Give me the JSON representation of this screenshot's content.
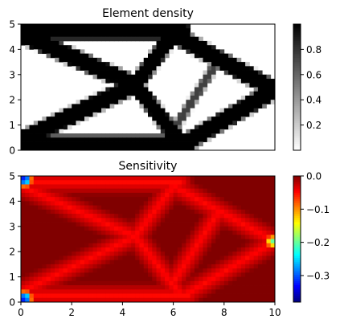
{
  "chart_data": [
    {
      "type": "heatmap",
      "title": "Element density",
      "xlabel": "",
      "ylabel": "",
      "xlim": [
        0,
        10
      ],
      "ylim": [
        0,
        5
      ],
      "xticks": [],
      "xtick_labels": [],
      "yticks": [
        0,
        1,
        2,
        3,
        4,
        5
      ],
      "ytick_labels": [
        "0",
        "1",
        "2",
        "3",
        "4",
        "5"
      ],
      "colormap": "gray_r",
      "colorbar": {
        "range": [
          0.0,
          1.0
        ],
        "ticks": [
          0.2,
          0.4,
          0.6,
          0.8
        ],
        "tick_labels": [
          "0.2",
          "0.4",
          "0.6",
          "0.8"
        ]
      },
      "structure": {
        "members": [
          [
            0,
            4.75,
            6.3,
            4.75
          ],
          [
            0,
            0.25,
            6.6,
            0.25
          ],
          [
            0,
            4.6,
            4.5,
            2.6
          ],
          [
            0,
            0.4,
            4.5,
            2.6
          ],
          [
            4.5,
            2.6,
            6.0,
            4.6
          ],
          [
            4.5,
            2.6,
            6.2,
            0.4
          ],
          [
            6.0,
            4.6,
            10.0,
            2.4
          ],
          [
            6.5,
            0.3,
            10.0,
            2.4
          ],
          [
            6.0,
            0.8,
            7.8,
            3.6
          ]
        ],
        "density": [
          1.0,
          1.0,
          1.0,
          1.0,
          1.0,
          1.0,
          1.0,
          1.0,
          0.75
        ],
        "half_width": [
          0.32,
          0.3,
          0.3,
          0.3,
          0.26,
          0.26,
          0.3,
          0.3,
          0.12
        ]
      }
    },
    {
      "type": "heatmap",
      "title": "Sensitivity",
      "xlabel": "",
      "ylabel": "",
      "xlim": [
        0,
        10
      ],
      "ylim": [
        0,
        5
      ],
      "xticks": [
        0,
        2,
        4,
        6,
        8,
        10
      ],
      "xtick_labels": [
        "0",
        "2",
        "4",
        "6",
        "8",
        "10"
      ],
      "yticks": [
        0,
        1,
        2,
        3,
        4,
        5
      ],
      "ytick_labels": [
        "0",
        "1",
        "2",
        "3",
        "4",
        "5"
      ],
      "colormap": "jet",
      "colorbar": {
        "range": [
          -0.38,
          0.0
        ],
        "ticks": [
          0.0,
          -0.1,
          -0.2,
          -0.3
        ],
        "tick_labels": [
          "0.0",
          "−0.1",
          "−0.2",
          "−0.3"
        ]
      },
      "background_value": 0.0,
      "member_value": -0.05,
      "hotspots": [
        {
          "x": 0.15,
          "y": 4.85,
          "value": -0.38
        },
        {
          "x": 0.15,
          "y": 0.15,
          "value": -0.38
        },
        {
          "x": 9.9,
          "y": 2.4,
          "value": -0.2
        }
      ]
    }
  ]
}
